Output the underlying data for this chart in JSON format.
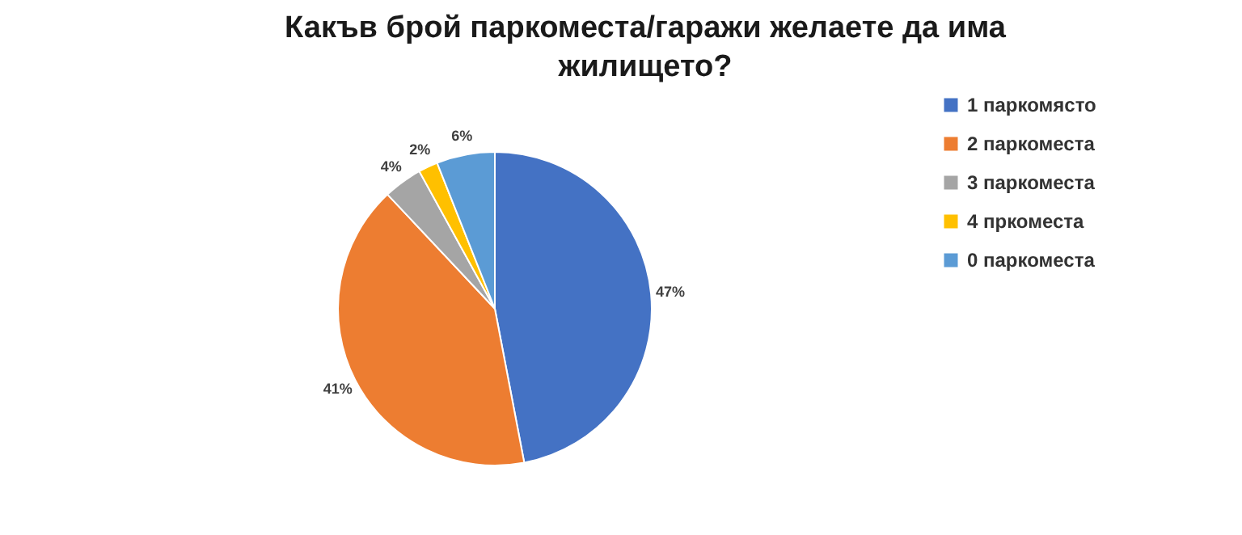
{
  "chart_data": {
    "type": "pie",
    "title": "Какъв брой паркоместа/гаражи желаете да има жилището?",
    "categories": [
      "1 паркомясто",
      "2 паркоместа",
      "3 паркоместа",
      "4 пркоместа",
      "0 паркоместа"
    ],
    "values": [
      47,
      41,
      4,
      2,
      6
    ],
    "value_labels": [
      "47%",
      "41%",
      "4%",
      "2%",
      "6%"
    ],
    "colors": [
      "#4472c4",
      "#ed7d31",
      "#a5a5a5",
      "#ffc000",
      "#5b9bd5"
    ],
    "legend": "right"
  }
}
